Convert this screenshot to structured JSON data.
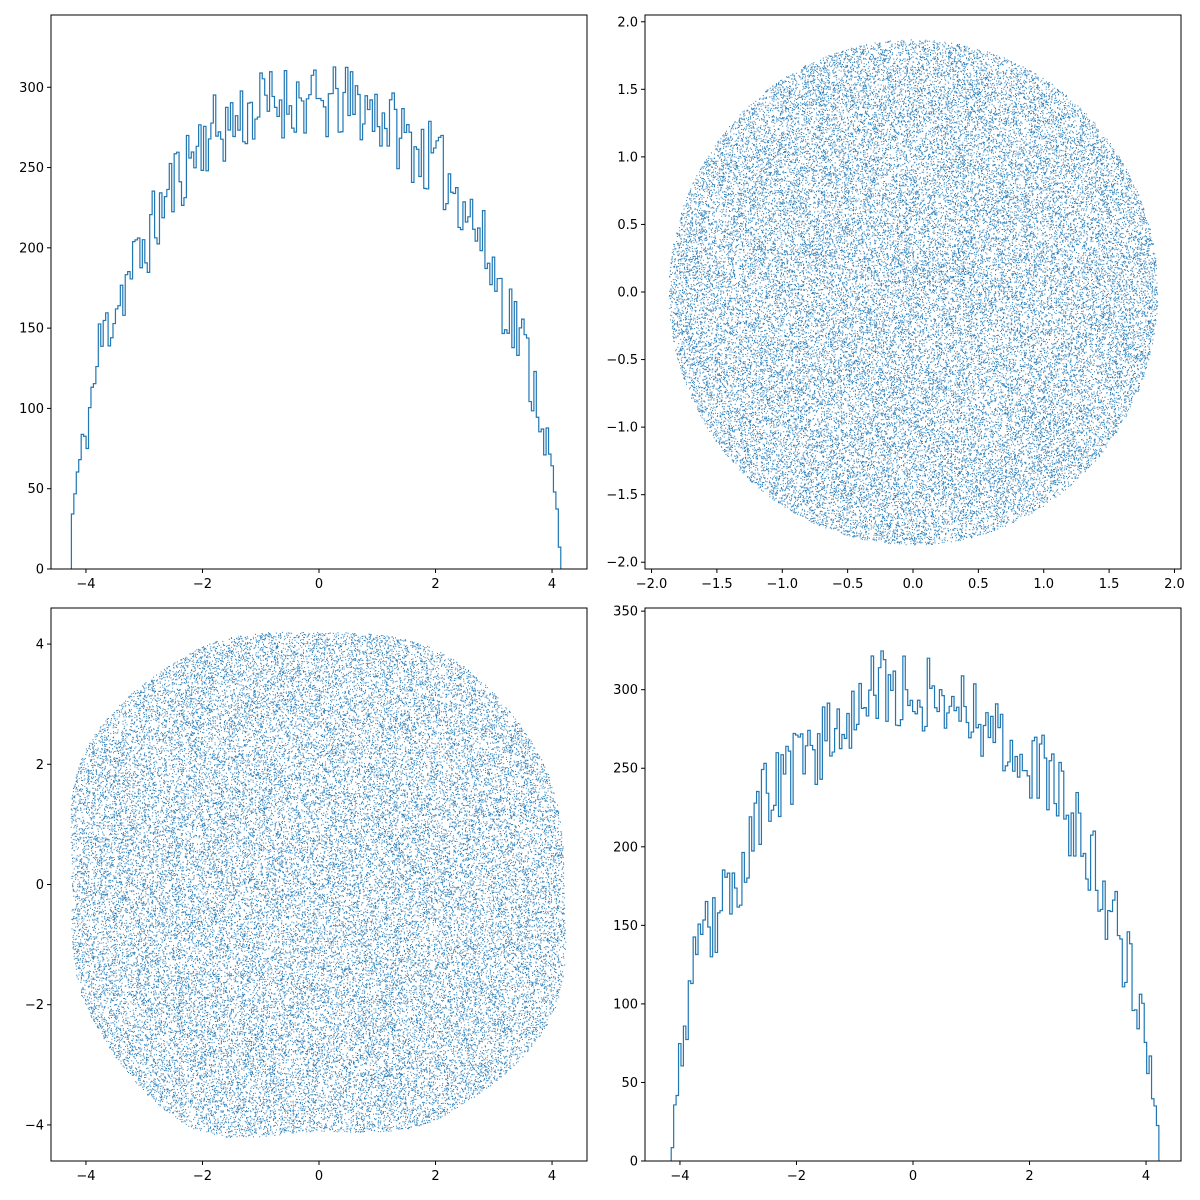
{
  "chart_data": [
    {
      "type": "histogram",
      "panel": "top-left",
      "style": "step",
      "color": "#1f77b4",
      "xlim": [
        -4.6,
        4.6
      ],
      "ylim": [
        0,
        345
      ],
      "xticks": [
        -4,
        -2,
        0,
        2,
        4
      ],
      "xtick_labels": [
        "−4",
        "−2",
        "0",
        "2",
        "4"
      ],
      "yticks": [
        0,
        50,
        100,
        150,
        200,
        250,
        300
      ],
      "ytick_labels": [
        "0",
        "50",
        "100",
        "150",
        "200",
        "250",
        "300"
      ],
      "support": [
        -4.25,
        4.15
      ],
      "bins": 200,
      "envelope": {
        "x": [
          -4.25,
          -4.15,
          -4.0,
          -3.75,
          -3.5,
          -3.0,
          -2.5,
          -2.0,
          -1.5,
          -1.0,
          -0.5,
          0.0,
          0.5,
          1.0,
          1.5,
          2.0,
          2.5,
          3.0,
          3.5,
          3.8,
          4.0,
          4.1,
          4.15
        ],
        "y": [
          28,
          57,
          85,
          140,
          165,
          200,
          240,
          268,
          278,
          288,
          293,
          288,
          290,
          285,
          268,
          252,
          230,
          185,
          140,
          100,
          60,
          30,
          0
        ]
      },
      "noise_amplitude": 14,
      "seed": 11
    },
    {
      "type": "scatter",
      "panel": "top-right",
      "color": "#1f77b4",
      "shape": "disk",
      "center": [
        0,
        0
      ],
      "radius": 1.87,
      "n_points": 45000,
      "xlim": [
        -2.05,
        2.05
      ],
      "ylim": [
        -2.05,
        2.05
      ],
      "xticks": [
        -2.0,
        -1.5,
        -1.0,
        -0.5,
        0.0,
        0.5,
        1.0,
        1.5,
        2.0
      ],
      "xtick_labels": [
        "−2.0",
        "−1.5",
        "−1.0",
        "−0.5",
        "0.0",
        "0.5",
        "1.0",
        "1.5",
        "2.0"
      ],
      "yticks": [
        -2.0,
        -1.5,
        -1.0,
        -0.5,
        0.0,
        0.5,
        1.0,
        1.5,
        2.0
      ],
      "ytick_labels": [
        "−2.0",
        "−1.5",
        "−1.0",
        "−0.5",
        "0.0",
        "0.5",
        "1.0",
        "1.5",
        "2.0"
      ],
      "seed": 23
    },
    {
      "type": "scatter",
      "panel": "bottom-left",
      "color": "#1f77b4",
      "shape": "rounded-square",
      "boundary": {
        "angles_deg": [
          0,
          30,
          60,
          90,
          120,
          150,
          180,
          210,
          240,
          270,
          300,
          330
        ],
        "radii": [
          4.2,
          4.35,
          4.4,
          4.2,
          4.45,
          4.6,
          4.25,
          4.5,
          4.6,
          4.1,
          4.4,
          4.55
        ]
      },
      "n_points": 45000,
      "xlim": [
        -4.6,
        4.6
      ],
      "ylim": [
        -4.6,
        4.6
      ],
      "xticks": [
        -4,
        -2,
        0,
        2,
        4
      ],
      "xtick_labels": [
        "−4",
        "−2",
        "0",
        "2",
        "4"
      ],
      "yticks": [
        -4,
        -2,
        0,
        2,
        4
      ],
      "ytick_labels": [
        "−4",
        "−2",
        "0",
        "2",
        "4"
      ],
      "seed": 37
    },
    {
      "type": "histogram",
      "panel": "bottom-right",
      "style": "step",
      "color": "#1f77b4",
      "xlim": [
        -4.6,
        4.6
      ],
      "ylim": [
        0,
        352
      ],
      "xticks": [
        -4,
        -2,
        0,
        2,
        4
      ],
      "xtick_labels": [
        "−4",
        "−2",
        "0",
        "2",
        "4"
      ],
      "yticks": [
        0,
        50,
        100,
        150,
        200,
        250,
        300,
        350
      ],
      "ytick_labels": [
        "0",
        "50",
        "100",
        "150",
        "200",
        "250",
        "300",
        "350"
      ],
      "support": [
        -4.15,
        4.22
      ],
      "bins": 200,
      "envelope": {
        "x": [
          -4.15,
          -4.05,
          -3.9,
          -3.75,
          -3.5,
          -3.0,
          -2.5,
          -2.0,
          -1.5,
          -1.0,
          -0.5,
          0.0,
          0.5,
          1.0,
          1.5,
          2.0,
          2.5,
          3.0,
          3.5,
          3.8,
          4.0,
          4.1,
          4.2,
          4.22
        ],
        "y": [
          0,
          50,
          90,
          120,
          145,
          180,
          235,
          250,
          270,
          290,
          300,
          300,
          295,
          290,
          270,
          255,
          235,
          195,
          150,
          110,
          80,
          50,
          22,
          0
        ]
      },
      "noise_amplitude": 15,
      "seed": 53
    }
  ]
}
